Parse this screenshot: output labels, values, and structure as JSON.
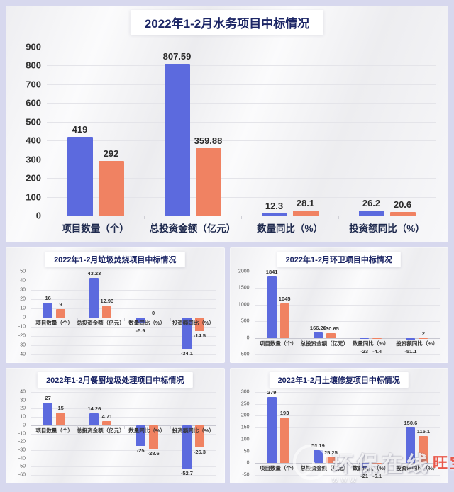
{
  "page": {
    "background": "#d7d8ee",
    "card_background": "#f5f5f7"
  },
  "colors": {
    "bar_blue": "#5c6ade",
    "bar_orange": "#f08262",
    "title_navy": "#1c2666"
  },
  "watermark": {
    "brand": "环保在线",
    "red_text": "旺宝",
    "url": "www",
    "logo_icon": "arc-fan-icon"
  },
  "chart_data": [
    {
      "type": "bar",
      "title": "2022年1-2月水务项目中标情况",
      "ymin": 0,
      "ymax": 900,
      "ystep": 100,
      "grid": true,
      "legend": "none",
      "categories": [
        "项目数量（个）",
        "总投资金额（亿元）",
        "数量同比（%）",
        "投资额同比（%）"
      ],
      "series": [
        {
          "name": "blue",
          "values": [
            419,
            807.59,
            12.3,
            26.2
          ]
        },
        {
          "name": "orange",
          "values": [
            292,
            359.88,
            28.1,
            20.6
          ]
        }
      ]
    },
    {
      "type": "bar",
      "title": "2022年1-2月垃圾焚烧项目中标情况",
      "ymin": -40,
      "ymax": 50,
      "ystep": 10,
      "grid": true,
      "legend": "none",
      "categories": [
        "项目数量（个）",
        "总投资金额（亿元）",
        "数量同比（%）",
        "投资额同比（%）"
      ],
      "series": [
        {
          "name": "blue",
          "values": [
            16,
            43.23,
            -5.9,
            -34.1
          ]
        },
        {
          "name": "orange",
          "values": [
            9,
            12.93,
            0,
            -14.5
          ]
        }
      ]
    },
    {
      "type": "bar",
      "title": "2022年1-2月环卫项目中标情况",
      "ymin": -500,
      "ymax": 2000,
      "ystep": 500,
      "grid": true,
      "legend": "none",
      "categories": [
        "项目数量（个）",
        "总投资金额（亿元）",
        "数量同比（%）",
        "投资额同比（%）"
      ],
      "series": [
        {
          "name": "blue",
          "values": [
            1841,
            166.26,
            -23,
            -51.1
          ]
        },
        {
          "name": "orange",
          "values": [
            1045,
            130.65,
            -4.4,
            2
          ]
        }
      ]
    },
    {
      "type": "bar",
      "title": "2022年1-2月餐厨垃圾处理项目中标情况",
      "ymin": -60,
      "ymax": 40,
      "ystep": 10,
      "grid": true,
      "legend": "none",
      "categories": [
        "项目数量（个）",
        "总投资金额（亿元）",
        "数量同比（%）",
        "投资额同比（%）"
      ],
      "series": [
        {
          "name": "blue",
          "values": [
            27,
            14.26,
            -25,
            -52.7
          ]
        },
        {
          "name": "orange",
          "values": [
            15,
            4.71,
            -28.6,
            -26.3
          ]
        }
      ]
    },
    {
      "type": "bar",
      "title": "2022年1-2月土壤修复项目中标情况",
      "ymin": -50,
      "ymax": 300,
      "ystep": 50,
      "grid": true,
      "legend": "none",
      "categories": [
        "项目数量（个）",
        "总投资金额（亿元）",
        "数量同比（%）",
        "投资额同比（%）"
      ],
      "series": [
        {
          "name": "blue",
          "values": [
            279,
            56.19,
            -21,
            150.6
          ]
        },
        {
          "name": "orange",
          "values": [
            193,
            25.25,
            -6.1,
            115.1
          ]
        }
      ]
    }
  ]
}
